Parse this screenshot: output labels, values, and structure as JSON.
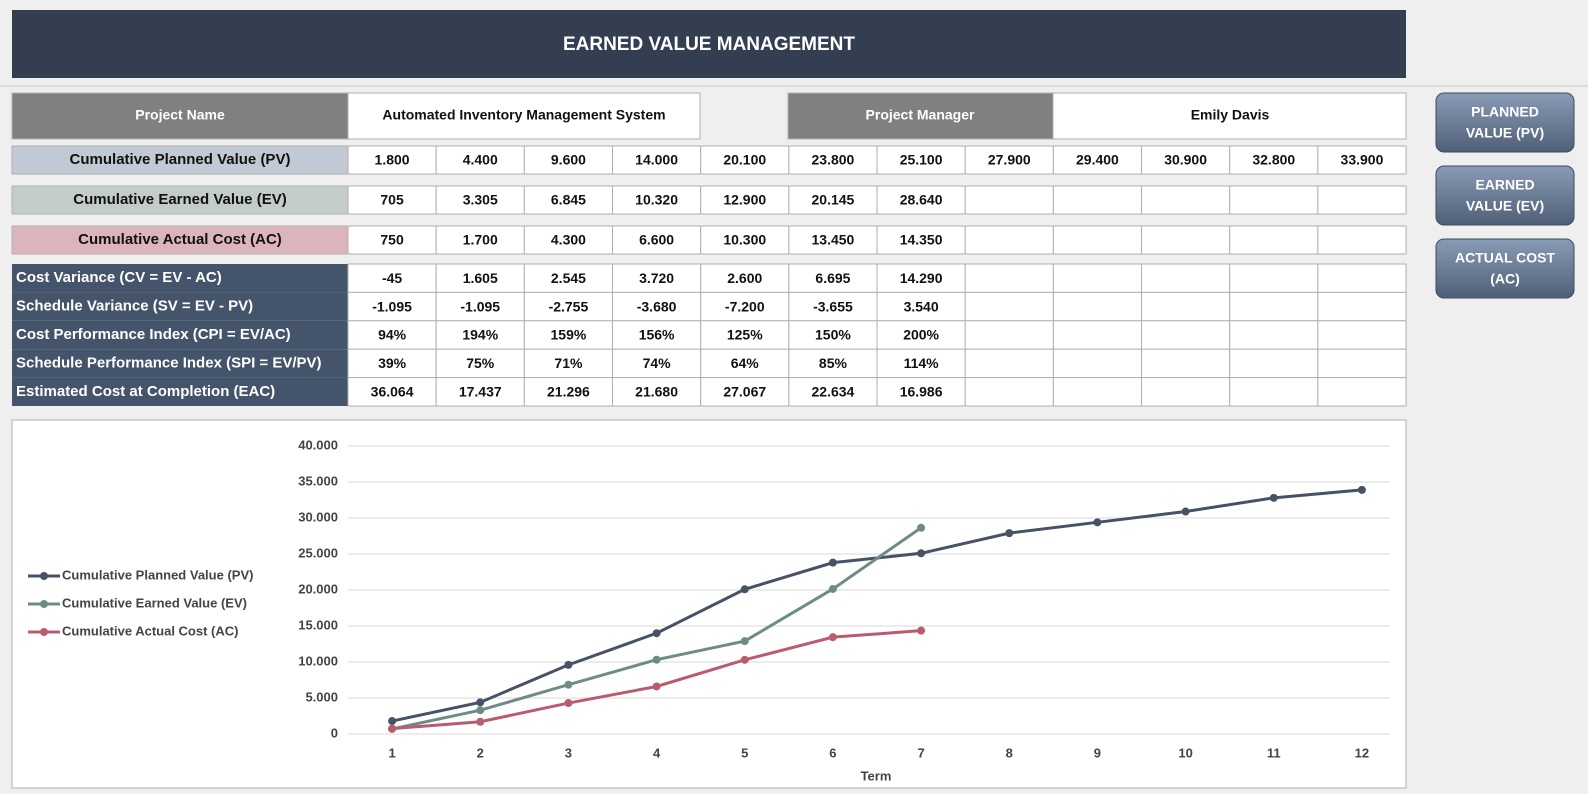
{
  "header": {
    "title": "EARNED VALUE MANAGEMENT"
  },
  "project": {
    "name_label": "Project Name",
    "name": "Automated Inventory Management System",
    "manager_label": "Project Manager",
    "manager": "Emily Davis"
  },
  "table": {
    "rows": [
      {
        "label": "Cumulative Planned Value (PV)",
        "cells": [
          "1.800",
          "4.400",
          "9.600",
          "14.000",
          "20.100",
          "23.800",
          "25.100",
          "27.900",
          "29.400",
          "30.900",
          "32.800",
          "33.900"
        ]
      },
      {
        "label": "Cumulative Earned Value (EV)",
        "cells": [
          "705",
          "3.305",
          "6.845",
          "10.320",
          "12.900",
          "20.145",
          "28.640"
        ]
      },
      {
        "label": "Cumulative Actual Cost (AC)",
        "cells": [
          "750",
          "1.700",
          "4.300",
          "6.600",
          "10.300",
          "13.450",
          "14.350"
        ]
      }
    ]
  },
  "metrics": {
    "rows": [
      {
        "label": "Cost Variance (CV = EV - AC)",
        "cells": [
          "-45",
          "1.605",
          "2.545",
          "3.720",
          "2.600",
          "6.695",
          "14.290"
        ]
      },
      {
        "label": "Schedule Variance (SV = EV - PV)",
        "cells": [
          "-1.095",
          "-1.095",
          "-2.755",
          "-3.680",
          "-7.200",
          "-3.655",
          "3.540"
        ]
      },
      {
        "label": "Cost Performance Index (CPI = EV/AC)",
        "cells": [
          "94%",
          "194%",
          "159%",
          "156%",
          "125%",
          "150%",
          "200%"
        ]
      },
      {
        "label": "Schedule Performance Index (SPI = EV/PV)",
        "cells": [
          "39%",
          "75%",
          "71%",
          "74%",
          "64%",
          "85%",
          "114%"
        ]
      },
      {
        "label": "Estimated Cost at Completion (EAC)",
        "cells": [
          "36.064",
          "17.437",
          "21.296",
          "21.680",
          "27.067",
          "22.634",
          "16.986"
        ]
      }
    ]
  },
  "buttons": [
    {
      "lines": [
        "PLANNED",
        "VALUE (PV)"
      ]
    },
    {
      "lines": [
        "EARNED",
        "VALUE (EV)"
      ]
    },
    {
      "lines": [
        "ACTUAL COST",
        "(AC)"
      ]
    }
  ],
  "chart_data": {
    "type": "line",
    "xlabel": "Term",
    "categories": [
      1,
      2,
      3,
      4,
      5,
      6,
      7,
      8,
      9,
      10,
      11,
      12
    ],
    "series": [
      {
        "name": "Cumulative Planned Value (PV)",
        "color": "#475266",
        "values": [
          1800,
          4400,
          9600,
          14000,
          20100,
          23800,
          25100,
          27900,
          29400,
          30900,
          32800,
          33900
        ]
      },
      {
        "name": "Cumulative Earned Value (EV)",
        "color": "#6e8c87",
        "values": [
          705,
          3305,
          6845,
          10320,
          12900,
          20145,
          28640,
          null,
          null,
          null,
          null,
          null
        ]
      },
      {
        "name": "Cumulative Actual Cost (AC)",
        "color": "#b85c6e",
        "values": [
          750,
          1700,
          4300,
          6600,
          10300,
          13450,
          14350,
          null,
          null,
          null,
          null,
          null
        ]
      }
    ],
    "ylim": [
      0,
      40000
    ],
    "yticks": [
      0,
      {
        "value": 5000,
        "label": "5.000"
      },
      {
        "value": 10000,
        "label": "10.000"
      },
      {
        "value": 15000,
        "label": "15.000"
      },
      {
        "value": 20000,
        "label": "20.000"
      },
      {
        "value": 25000,
        "label": "25.000"
      },
      {
        "value": 30000,
        "label": "30.000"
      },
      {
        "value": 35000,
        "label": "35.000"
      },
      {
        "value": 40000,
        "label": "40.000"
      }
    ],
    "grid": true,
    "legend": "left"
  }
}
